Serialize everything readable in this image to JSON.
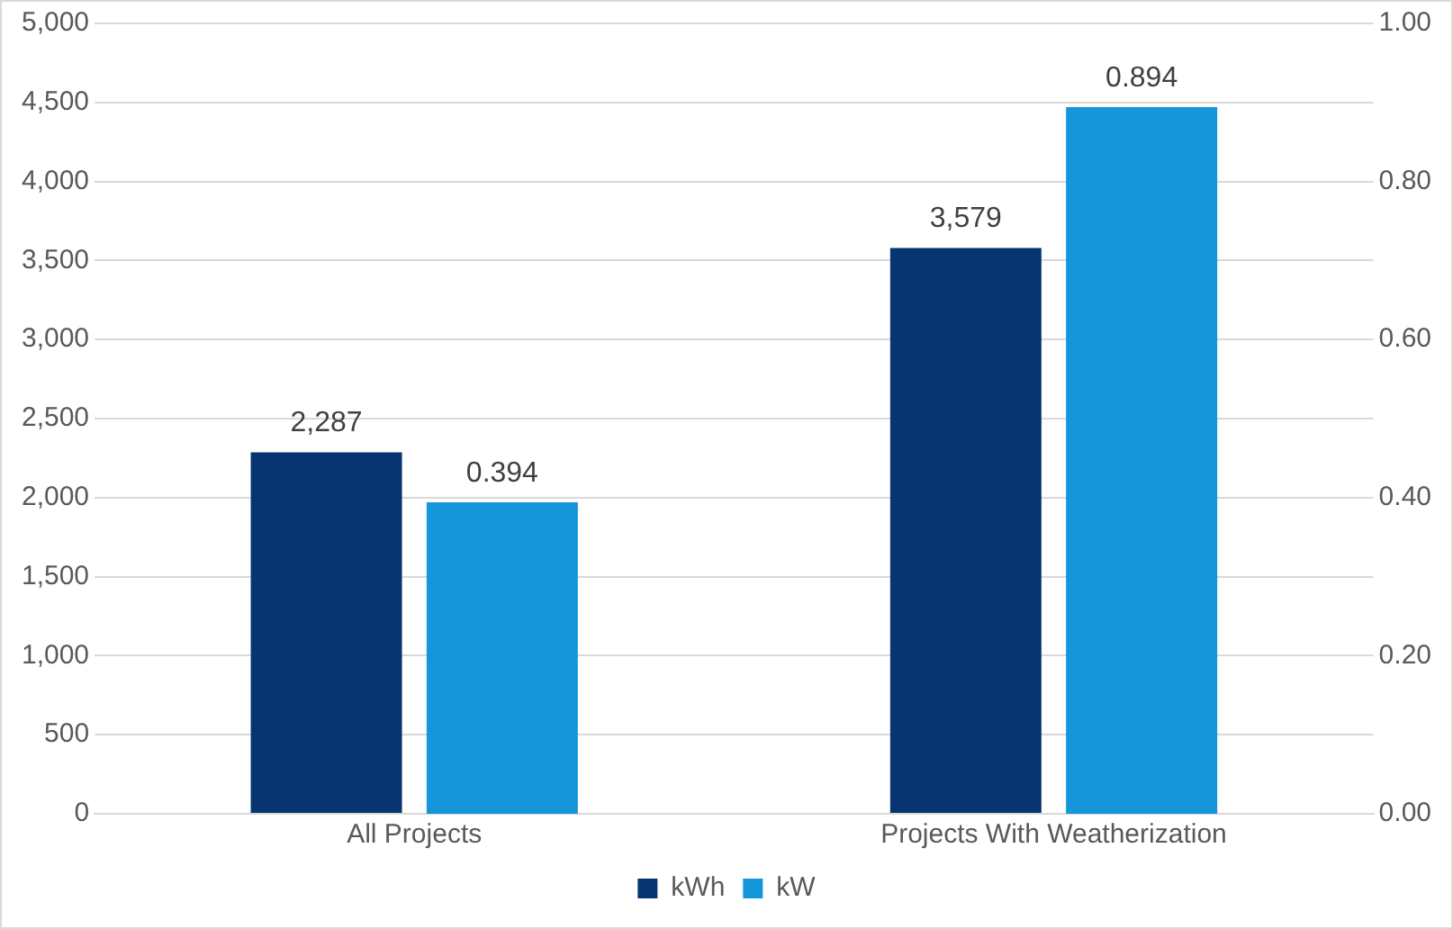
{
  "chart_data": {
    "type": "bar",
    "categories": [
      "All Projects",
      "Projects With Weatherization"
    ],
    "series": [
      {
        "name": "kWh",
        "color": "#063570",
        "values": [
          2287,
          3579
        ],
        "value_labels": [
          "2,287",
          "3,579"
        ]
      },
      {
        "name": "kW",
        "color": "#1596da",
        "values": [
          0.394,
          0.894
        ],
        "value_labels": [
          "0.394",
          "0.894"
        ],
        "axis": "y2"
      }
    ],
    "ylim": [
      0,
      5000
    ],
    "yticks": [
      {
        "value": 0,
        "label": "0"
      },
      {
        "value": 500,
        "label": "500"
      },
      {
        "value": 1000,
        "label": "1,000"
      },
      {
        "value": 1500,
        "label": "1,500"
      },
      {
        "value": 2000,
        "label": "2,000"
      },
      {
        "value": 2500,
        "label": "2,500"
      },
      {
        "value": 3000,
        "label": "3,000"
      },
      {
        "value": 3500,
        "label": "3,500"
      },
      {
        "value": 4000,
        "label": "4,000"
      },
      {
        "value": 4500,
        "label": "4,500"
      },
      {
        "value": 5000,
        "label": "5,000"
      }
    ],
    "y2lim": [
      0,
      1
    ],
    "y2ticks": [
      {
        "value": 0,
        "label": "0.00"
      },
      {
        "value": 0.2,
        "label": "0.20"
      },
      {
        "value": 0.4,
        "label": "0.40"
      },
      {
        "value": 0.6,
        "label": "0.60"
      },
      {
        "value": 0.8,
        "label": "0.80"
      },
      {
        "value": 1,
        "label": "1.00"
      }
    ],
    "grid": "y",
    "legend": "bottom"
  }
}
